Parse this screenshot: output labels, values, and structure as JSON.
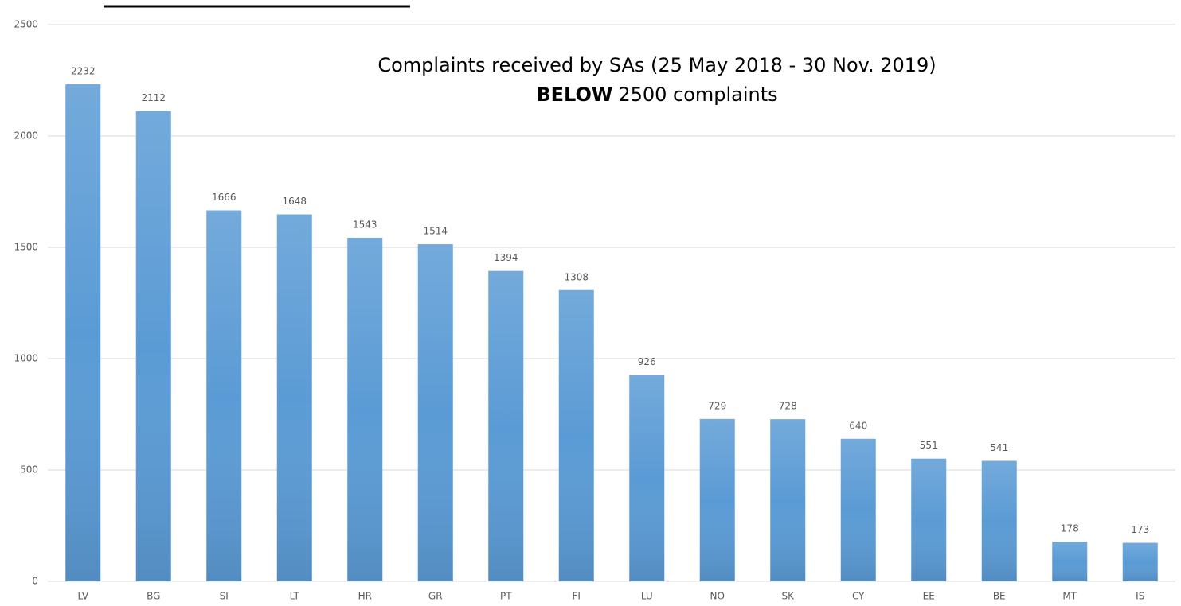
{
  "chart_data": {
    "type": "bar",
    "title": "Complaints received by SAs (25 May 2018 - 30 Nov. 2019)",
    "subtitle": {
      "bold": "BELOW",
      "rest": "2500 complaints"
    },
    "categories": [
      "LV",
      "BG",
      "SI",
      "LT",
      "HR",
      "GR",
      "PT",
      "FI",
      "LU",
      "NO",
      "SK",
      "CY",
      "EE",
      "BE",
      "MT",
      "IS"
    ],
    "values": [
      2232,
      2112,
      1666,
      1648,
      1543,
      1514,
      1394,
      1308,
      926,
      729,
      728,
      640,
      551,
      541,
      178,
      173
    ],
    "color": "#5b9bd5",
    "ylim": [
      0,
      2500
    ],
    "yticks": [
      0,
      500,
      1000,
      1500,
      2000,
      2500
    ],
    "grid": true
  }
}
